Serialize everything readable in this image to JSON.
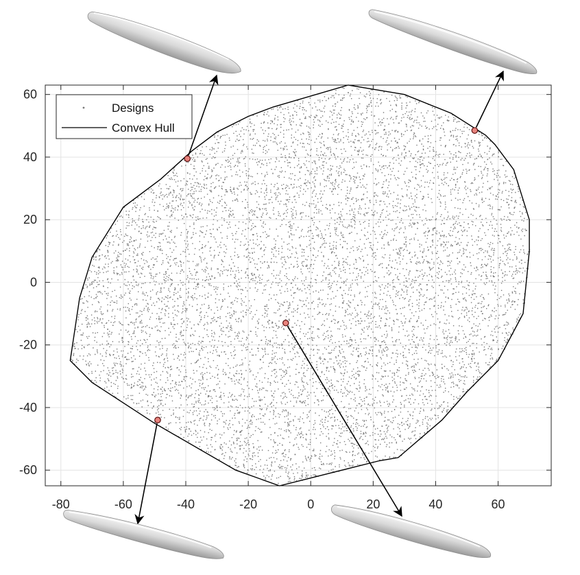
{
  "chart_data": {
    "type": "scatter",
    "title": "",
    "xlabel": "",
    "ylabel": "",
    "xlim": [
      -85,
      77
    ],
    "ylim": [
      -65,
      63
    ],
    "grid": true,
    "legend_placement": "top-left",
    "x_ticks": [
      -80,
      -60,
      -40,
      -20,
      0,
      20,
      40,
      60
    ],
    "y_ticks": [
      60,
      40,
      20,
      0,
      -20,
      -40,
      -60
    ],
    "x_tick_labels": [
      "-80",
      "-60",
      "-40",
      "-20",
      "0",
      "20",
      "40",
      "60"
    ],
    "y_tick_labels": [
      "60",
      "40",
      "20",
      "0",
      "-20",
      "-40",
      "-60"
    ],
    "legend": {
      "designs_label": "Designs",
      "hull_label": "Convex Hull"
    },
    "colors": {
      "designs": "#7a7a7a",
      "hull": "#000000",
      "highlight_fill": "#e8837d",
      "highlight_edge": "#5a1010",
      "grid": "#e3e3e3",
      "axes": "#262626"
    },
    "convex_hull": [
      [
        12,
        63
      ],
      [
        30,
        60
      ],
      [
        45,
        54
      ],
      [
        56,
        47
      ],
      [
        59,
        44
      ],
      [
        65,
        36
      ],
      [
        70,
        20
      ],
      [
        70,
        10
      ],
      [
        69,
        0
      ],
      [
        68,
        -10
      ],
      [
        60,
        -25
      ],
      [
        50,
        -35
      ],
      [
        42,
        -44
      ],
      [
        28,
        -56
      ],
      [
        22,
        -57
      ],
      [
        -10,
        -65
      ],
      [
        -24,
        -60
      ],
      [
        -50,
        -45
      ],
      [
        -70,
        -32
      ],
      [
        -77,
        -25
      ],
      [
        -74,
        -5
      ],
      [
        -70,
        8
      ],
      [
        -60,
        24
      ],
      [
        -48,
        33
      ],
      [
        -38,
        42
      ],
      [
        -30,
        48
      ],
      [
        -20,
        53
      ],
      [
        -12,
        56
      ],
      [
        12,
        63
      ]
    ],
    "highlighted_designs": [
      {
        "x": -39.5,
        "y": 39.5
      },
      {
        "x": 52.5,
        "y": 48.5
      },
      {
        "x": -49,
        "y": -44
      },
      {
        "x": -8,
        "y": -13
      }
    ],
    "design_count_approx": 9000,
    "design_points_sample": [
      [
        -60,
        10
      ],
      [
        -40,
        -20
      ],
      [
        -20,
        30
      ],
      [
        0,
        0
      ],
      [
        20,
        -30
      ],
      [
        40,
        20
      ],
      [
        55,
        -10
      ],
      [
        10,
        50
      ],
      [
        -5,
        -55
      ],
      [
        30,
        40
      ],
      [
        -30,
        -40
      ],
      [
        45,
        -25
      ],
      [
        -65,
        -15
      ],
      [
        60,
        15
      ]
    ]
  },
  "illustrations": {
    "ship_top_left": "hull-render",
    "ship_top_right": "hull-render",
    "ship_bottom_left": "hull-render",
    "ship_bottom_right": "hull-render"
  }
}
